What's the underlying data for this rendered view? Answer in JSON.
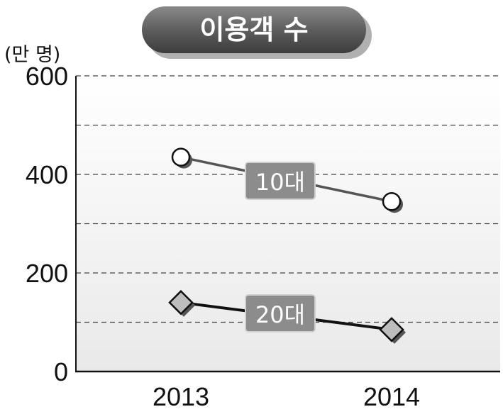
{
  "chart_data": {
    "type": "line",
    "title": "이용객 수",
    "ylabel": "(만 명)",
    "xlabel": "",
    "categories": [
      "2013",
      "2014"
    ],
    "ylim": [
      0,
      600
    ],
    "yticks": [
      "0",
      "200",
      "400",
      "600"
    ],
    "grid": true,
    "series": [
      {
        "name": "10대",
        "values": [
          435,
          345
        ],
        "marker": "circle",
        "color": "#555555"
      },
      {
        "name": "20대",
        "values": [
          140,
          85
        ],
        "marker": "diamond",
        "color": "#111111"
      }
    ]
  }
}
